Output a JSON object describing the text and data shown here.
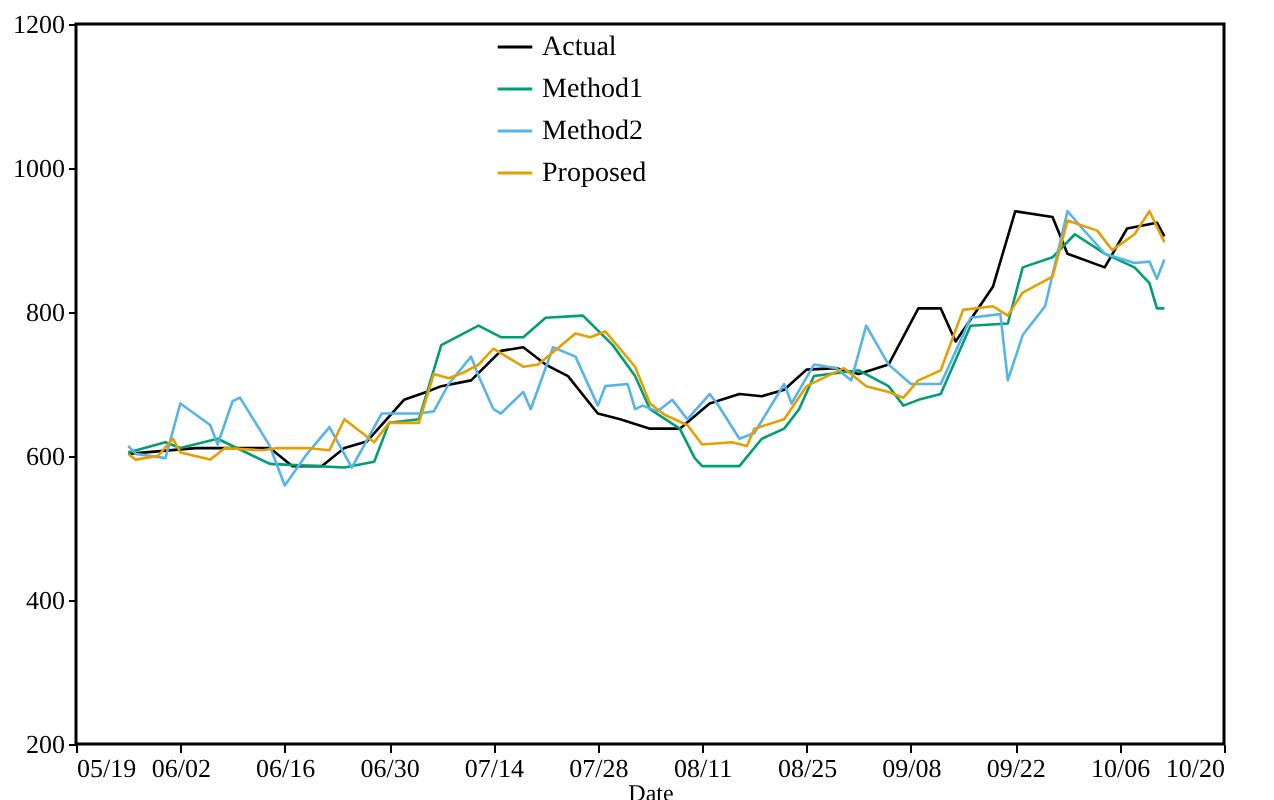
{
  "chart_data": {
    "type": "line",
    "xlabel": "Date",
    "legend": "top",
    "marker": "none",
    "line_style": "solid",
    "xlim": [
      "--05-19",
      "--10-20"
    ],
    "xticks": [
      {
        "value": "--05-19",
        "label": "05/19"
      },
      {
        "value": "--06-02",
        "label": "06/02"
      },
      {
        "value": "--06-16",
        "label": "06/16"
      },
      {
        "value": "--06-30",
        "label": "06/30"
      },
      {
        "value": "--07-14",
        "label": "07/14"
      },
      {
        "value": "--07-28",
        "label": "07/28"
      },
      {
        "value": "--08-11",
        "label": "08/11"
      },
      {
        "value": "--08-25",
        "label": "08/25"
      },
      {
        "value": "--09-08",
        "label": "09/08"
      },
      {
        "value": "--09-22",
        "label": "09/22"
      },
      {
        "value": "--10-06",
        "label": "10/06"
      },
      {
        "value": "--10-20",
        "label": "10/20"
      }
    ],
    "ylim": [
      200,
      1200
    ],
    "yticks": [
      200,
      400,
      600,
      800,
      1000,
      1200
    ],
    "series": [
      {
        "name": "Actual",
        "color": "#000000",
        "x": [
          "--05-26",
          "--06-04",
          "--06-14",
          "--06-17",
          "--06-21",
          "--06-24",
          "--06-27",
          "--07-02",
          "--07-05",
          "--07-07",
          "--07-11",
          "--07-15",
          "--07-18",
          "--07-21",
          "--07-24",
          "--07-28",
          "--07-31",
          "--08-04",
          "--08-08",
          "--08-12",
          "--08-16",
          "--08-19",
          "--08-22",
          "--08-25",
          "--08-29",
          "--09-01",
          "--09-05",
          "--09-09",
          "--09-12",
          "--09-14",
          "--09-19",
          "--09-22",
          "--09-27",
          "--09-29",
          "--10-04",
          "--10-07",
          "--10-11",
          "--10-12"
        ],
        "values": [
          603,
          611,
          611,
          586,
          586,
          611,
          620,
          678,
          689,
          697,
          705,
          746,
          751,
          727,
          711,
          659,
          651,
          638,
          638,
          673,
          686,
          683,
          692,
          720,
          722,
          714,
          727,
          805,
          805,
          759,
          835,
          940,
          932,
          881,
          862,
          916,
          924,
          905
        ]
      },
      {
        "name": "Method1",
        "color": "#009e73",
        "x": [
          "--05-26",
          "--05-31",
          "--06-02",
          "--06-07",
          "--06-14",
          "--06-24",
          "--06-28",
          "--06-30",
          "--07-04",
          "--07-07",
          "--07-12",
          "--07-15",
          "--07-18",
          "--07-21",
          "--07-26",
          "--07-30",
          "--08-02",
          "--08-04",
          "--08-08",
          "--08-10",
          "--08-11",
          "--08-16",
          "--08-19",
          "--08-22",
          "--08-24",
          "--08-26",
          "--09-01",
          "--09-05",
          "--09-07",
          "--09-09",
          "--09-12",
          "--09-16",
          "--09-21",
          "--09-23",
          "--09-27",
          "--09-30",
          "--10-04",
          "--10-08",
          "--10-10",
          "--10-11",
          "--10-12"
        ],
        "values": [
          605,
          619,
          611,
          624,
          589,
          584,
          592,
          646,
          651,
          754,
          781,
          765,
          765,
          792,
          795,
          754,
          711,
          665,
          638,
          597,
          586,
          586,
          624,
          638,
          665,
          711,
          719,
          697,
          670,
          678,
          686,
          781,
          784,
          862,
          876,
          908,
          881,
          862,
          840,
          805,
          805
        ]
      },
      {
        "name": "Method2",
        "color": "#56b4e9",
        "x": [
          "--05-26",
          "--05-27",
          "--05-31",
          "--06-02",
          "--06-06",
          "--06-07",
          "--06-09",
          "--06-10",
          "--06-14",
          "--06-16",
          "--06-19",
          "--06-22",
          "--06-25",
          "--06-29",
          "--07-04",
          "--07-06",
          "--07-08",
          "--07-11",
          "--07-12",
          "--07-14",
          "--07-15",
          "--07-18",
          "--07-19",
          "--07-22",
          "--07-25",
          "--07-28",
          "--07-29",
          "--08-01",
          "--08-02",
          "--08-03",
          "--08-05",
          "--08-07",
          "--08-09",
          "--08-12",
          "--08-13",
          "--08-16",
          "--08-18",
          "--08-22",
          "--08-23",
          "--08-26",
          "--08-29",
          "--08-31",
          "--09-02",
          "--09-05",
          "--09-08",
          "--09-12",
          "--09-15",
          "--09-16",
          "--09-20",
          "--09-21",
          "--09-23",
          "--09-26",
          "--09-29",
          "--10-01",
          "--10-04",
          "--10-08",
          "--10-10",
          "--10-11",
          "--10-12"
        ],
        "values": [
          614,
          603,
          597,
          673,
          643,
          616,
          676,
          681,
          614,
          559,
          603,
          640,
          584,
          659,
          659,
          662,
          700,
          738,
          711,
          665,
          659,
          689,
          665,
          751,
          738,
          670,
          697,
          700,
          665,
          670,
          662,
          678,
          651,
          686,
          673,
          624,
          632,
          700,
          673,
          727,
          722,
          705,
          781,
          727,
          700,
          700,
          768,
          792,
          797,
          705,
          768,
          808,
          940,
          916,
          881,
          868,
          870,
          846,
          873
        ]
      },
      {
        "name": "Proposed",
        "color": "#e69f00",
        "x": [
          "--05-26",
          "--05-27",
          "--05-30",
          "--06-01",
          "--06-02",
          "--06-06",
          "--06-08",
          "--06-13",
          "--06-15",
          "--06-19",
          "--06-22",
          "--06-24",
          "--06-28",
          "--06-30",
          "--07-04",
          "--07-06",
          "--07-08",
          "--07-10",
          "--07-12",
          "--07-14",
          "--07-18",
          "--07-20",
          "--07-25",
          "--07-27",
          "--07-29",
          "--08-02",
          "--08-04",
          "--08-06",
          "--08-09",
          "--08-11",
          "--08-15",
          "--08-17",
          "--08-18",
          "--08-22",
          "--08-25",
          "--08-30",
          "--09-02",
          "--09-05",
          "--09-07",
          "--09-09",
          "--09-12",
          "--09-15",
          "--09-19",
          "--09-21",
          "--09-23",
          "--09-27",
          "--09-29",
          "--10-03",
          "--10-05",
          "--10-08",
          "--10-10",
          "--10-12"
        ],
        "values": [
          603,
          595,
          600,
          624,
          605,
          595,
          611,
          608,
          611,
          611,
          608,
          651,
          619,
          646,
          646,
          714,
          708,
          716,
          727,
          749,
          724,
          727,
          770,
          765,
          773,
          724,
          673,
          657,
          643,
          616,
          619,
          614,
          638,
          651,
          697,
          722,
          697,
          689,
          681,
          705,
          719,
          803,
          808,
          795,
          827,
          849,
          927,
          913,
          886,
          908,
          940,
          897
        ]
      }
    ]
  }
}
